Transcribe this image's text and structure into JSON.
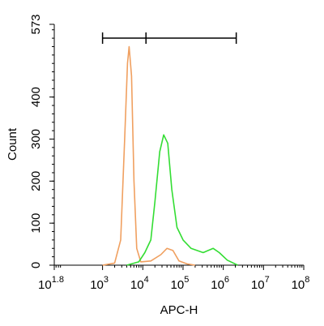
{
  "chart_data": {
    "type": "line",
    "xlabel": "APC-H",
    "ylabel": "Count",
    "xscale": "log",
    "xlim": [
      63.1,
      100000000
    ],
    "xticks": [
      {
        "value": 63.1,
        "label": "10",
        "sup": "1.8"
      },
      {
        "value": 1000,
        "label": "10",
        "sup": "3"
      },
      {
        "value": 10000,
        "label": "10",
        "sup": "4"
      },
      {
        "value": 100000,
        "label": "10",
        "sup": "5"
      },
      {
        "value": 1000000,
        "label": "10",
        "sup": "6"
      },
      {
        "value": 10000000,
        "label": "10",
        "sup": "7"
      },
      {
        "value": 100000000,
        "label": "10",
        "sup": "8"
      }
    ],
    "ylim": [
      0,
      573
    ],
    "yticks": [
      0,
      100,
      200,
      300,
      400,
      573
    ],
    "gates": [
      1000,
      12000,
      2100000
    ],
    "series": [
      {
        "color": "#f0a060",
        "x": [
          1000,
          1995,
          2818,
          3548,
          4169,
          4571,
          5248,
          6026,
          7079,
          8913,
          15849,
          28184,
          39811,
          56234,
          79433,
          125893,
          199526
        ],
        "values": [
          0,
          5,
          60,
          300,
          480,
          520,
          450,
          200,
          40,
          8,
          10,
          25,
          40,
          35,
          10,
          3,
          0
        ]
      },
      {
        "color": "#33dd33",
        "x": [
          3981,
          7943,
          11220,
          15849,
          19953,
          26303,
          33113,
          41687,
          52481,
          70795,
          100000,
          158489,
          316228,
          562341,
          794328,
          1258925,
          2290868
        ],
        "values": [
          0,
          8,
          30,
          60,
          150,
          270,
          310,
          290,
          180,
          90,
          60,
          40,
          30,
          40,
          30,
          12,
          0
        ]
      }
    ]
  }
}
